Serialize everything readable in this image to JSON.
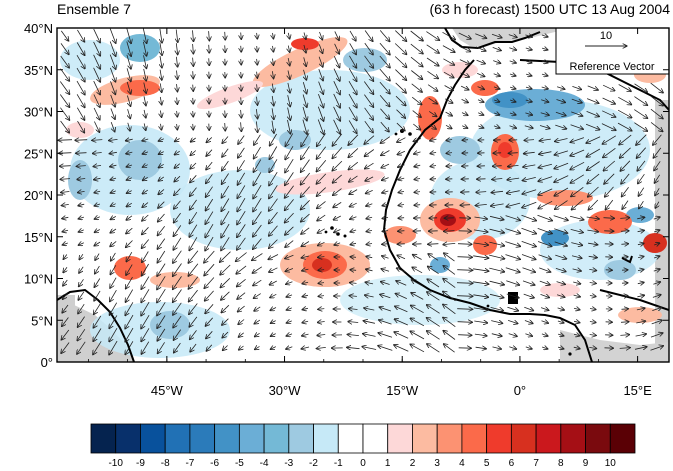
{
  "title_left": "Ensemble 7",
  "title_right": "(63 h forecast) 1500 UTC 13 Aug 2004",
  "map": {
    "lon_range": [
      -59,
      19
    ],
    "lat_range": [
      0,
      40
    ],
    "lat_ticks": [
      {
        "value": 0,
        "label": "0°"
      },
      {
        "value": 5,
        "label": "5°N"
      },
      {
        "value": 10,
        "label": "10°N"
      },
      {
        "value": 15,
        "label": "15°N"
      },
      {
        "value": 20,
        "label": "20°N"
      },
      {
        "value": 25,
        "label": "25°N"
      },
      {
        "value": 30,
        "label": "30°N"
      },
      {
        "value": 35,
        "label": "35°N"
      },
      {
        "value": 40,
        "label": "40°N"
      }
    ],
    "lon_ticks": [
      {
        "value": -45,
        "label": "45°W"
      },
      {
        "value": -30,
        "label": "30°W"
      },
      {
        "value": -15,
        "label": "15°W"
      },
      {
        "value": 0,
        "label": "0°"
      },
      {
        "value": 15,
        "label": "15°E"
      }
    ],
    "reference_vector": {
      "value": "10",
      "label": "Reference Vector"
    },
    "land_color": "#cfcfcf"
  },
  "colorbar": {
    "labels": [
      "-10",
      "-9",
      "-8",
      "-7",
      "-6",
      "-5",
      "-4",
      "-3",
      "-2",
      "-1",
      "0",
      "1",
      "2",
      "3",
      "4",
      "5",
      "6",
      "7",
      "8",
      "9",
      "10"
    ],
    "colors": [
      "#05234f",
      "#08306b",
      "#08519c",
      "#2171b5",
      "#2b7bba",
      "#4292c6",
      "#6baed6",
      "#74b9d6",
      "#9ecae1",
      "#c6e9f7",
      "#ffffff",
      "#ffffff",
      "#fdd8d8",
      "#fcbba1",
      "#fc9272",
      "#fb6a4a",
      "#ef3b2c",
      "#d7301f",
      "#cb181d",
      "#a50f15",
      "#7a0a0e",
      "#5a0005"
    ]
  }
}
